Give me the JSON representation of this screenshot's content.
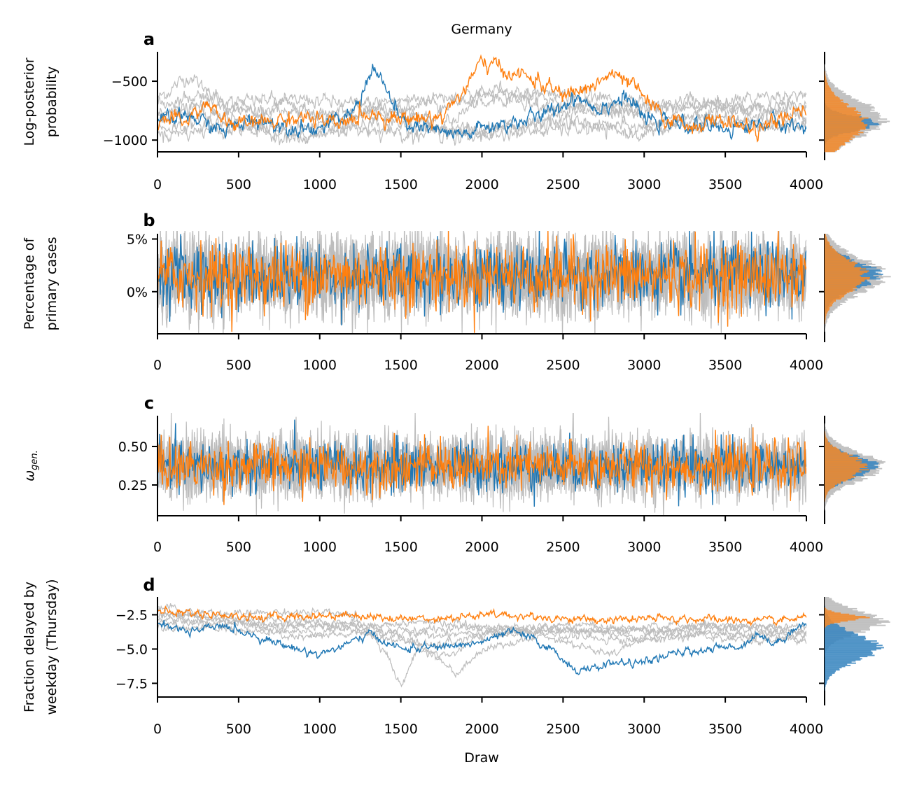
{
  "title": "Germany",
  "xlabel": "Draw",
  "colors": {
    "chain1": "#1f77b4",
    "chain2": "#ff7f0e",
    "other": "#bdbdbd",
    "hist1": "#3a86bf",
    "hist2": "#f28a2c"
  },
  "chart_data": [
    {
      "type": "line",
      "letter": "a",
      "ylabel": [
        "Log-posterior",
        "probability"
      ],
      "xlim": [
        0,
        4000
      ],
      "ylim": [
        -1100,
        -250
      ],
      "xticks": [
        0,
        500,
        1000,
        1500,
        2000,
        2500,
        3000,
        3500,
        4000
      ],
      "xtick_labels": [
        "0",
        "500",
        "1000",
        "1500",
        "2000",
        "2500",
        "3000",
        "3500",
        "4000"
      ],
      "yticks": [
        -500,
        -1000
      ],
      "ytick_labels": [
        "−500",
        "−1000"
      ],
      "n_gray_chains": 6,
      "series": [
        {
          "color": "chain1",
          "keypoints": [
            [
              0,
              -850
            ],
            [
              200,
              -800
            ],
            [
              400,
              -920
            ],
            [
              600,
              -820
            ],
            [
              800,
              -880
            ],
            [
              1000,
              -900
            ],
            [
              1200,
              -780
            ],
            [
              1330,
              -380
            ],
            [
              1420,
              -600
            ],
            [
              1500,
              -850
            ],
            [
              1700,
              -920
            ],
            [
              1850,
              -970
            ],
            [
              2000,
              -900
            ],
            [
              2200,
              -850
            ],
            [
              2400,
              -780
            ],
            [
              2600,
              -620
            ],
            [
              2700,
              -730
            ],
            [
              2900,
              -640
            ],
            [
              3000,
              -820
            ],
            [
              3200,
              -870
            ],
            [
              3500,
              -900
            ],
            [
              3800,
              -850
            ],
            [
              4000,
              -900
            ]
          ]
        },
        {
          "color": "chain2",
          "keypoints": [
            [
              0,
              -820
            ],
            [
              150,
              -850
            ],
            [
              300,
              -700
            ],
            [
              450,
              -870
            ],
            [
              650,
              -850
            ],
            [
              900,
              -800
            ],
            [
              1100,
              -880
            ],
            [
              1300,
              -770
            ],
            [
              1500,
              -820
            ],
            [
              1750,
              -800
            ],
            [
              1900,
              -560
            ],
            [
              2000,
              -330
            ],
            [
              2150,
              -420
            ],
            [
              2300,
              -470
            ],
            [
              2500,
              -620
            ],
            [
              2650,
              -560
            ],
            [
              2800,
              -440
            ],
            [
              2950,
              -560
            ],
            [
              3100,
              -800
            ],
            [
              3300,
              -880
            ],
            [
              3500,
              -830
            ],
            [
              3700,
              -920
            ],
            [
              3850,
              -820
            ],
            [
              4000,
              -760
            ]
          ]
        }
      ],
      "gray_keypoints": [
        [
          [
            0,
            -650
          ],
          [
            200,
            -450
          ],
          [
            400,
            -700
          ],
          [
            700,
            -650
          ],
          [
            1000,
            -800
          ],
          [
            1400,
            -700
          ],
          [
            1800,
            -850
          ],
          [
            2100,
            -550
          ],
          [
            2400,
            -650
          ],
          [
            2800,
            -750
          ],
          [
            3200,
            -700
          ],
          [
            3600,
            -750
          ],
          [
            4000,
            -700
          ]
        ],
        [
          [
            0,
            -700
          ],
          [
            300,
            -600
          ],
          [
            600,
            -750
          ],
          [
            900,
            -650
          ],
          [
            1200,
            -700
          ],
          [
            1600,
            -650
          ],
          [
            2000,
            -600
          ],
          [
            2400,
            -700
          ],
          [
            2800,
            -800
          ],
          [
            3300,
            -650
          ],
          [
            3700,
            -800
          ],
          [
            4000,
            -700
          ]
        ],
        [
          [
            0,
            -900
          ],
          [
            400,
            -850
          ],
          [
            800,
            -950
          ],
          [
            1200,
            -900
          ],
          [
            1600,
            -950
          ],
          [
            2000,
            -900
          ],
          [
            2500,
            -850
          ],
          [
            3000,
            -900
          ],
          [
            3500,
            -850
          ],
          [
            4000,
            -880
          ]
        ],
        [
          [
            0,
            -800
          ],
          [
            300,
            -700
          ],
          [
            700,
            -900
          ],
          [
            1100,
            -850
          ],
          [
            1500,
            -800
          ],
          [
            1900,
            -1000
          ],
          [
            2300,
            -850
          ],
          [
            2700,
            -700
          ],
          [
            3100,
            -850
          ],
          [
            3600,
            -700
          ],
          [
            4000,
            -800
          ]
        ],
        [
          [
            0,
            -950
          ],
          [
            500,
            -900
          ],
          [
            900,
            -1000
          ],
          [
            1300,
            -850
          ],
          [
            1700,
            -900
          ],
          [
            2100,
            -950
          ],
          [
            2600,
            -900
          ],
          [
            3000,
            -950
          ],
          [
            3400,
            -800
          ],
          [
            3800,
            -900
          ],
          [
            4000,
            -850
          ]
        ],
        [
          [
            0,
            -750
          ],
          [
            400,
            -800
          ],
          [
            800,
            -750
          ],
          [
            1200,
            -800
          ],
          [
            1600,
            -700
          ],
          [
            2000,
            -650
          ],
          [
            2400,
            -600
          ],
          [
            2800,
            -650
          ],
          [
            3200,
            -750
          ],
          [
            3600,
            -650
          ],
          [
            4000,
            -600
          ]
        ]
      ],
      "noise": 28,
      "gray_noise": 25,
      "hist": {
        "gray_center": -820,
        "gray_sd": 150,
        "c1_center": -860,
        "c1_sd": 60,
        "c2_center": -860,
        "c2_sd": 150
      }
    },
    {
      "type": "line",
      "letter": "b",
      "ylabel": [
        "Percentage of",
        "primary cases"
      ],
      "xlim": [
        0,
        4000
      ],
      "ylim": [
        -4,
        5.5
      ],
      "xticks": [
        0,
        500,
        1000,
        1500,
        2000,
        2500,
        3000,
        3500,
        4000
      ],
      "xtick_labels": [
        "0",
        "500",
        "1000",
        "1500",
        "2000",
        "2500",
        "3000",
        "3500",
        "4000"
      ],
      "yticks": [
        5,
        0
      ],
      "ytick_labels": [
        "5%",
        "0%"
      ],
      "n_gray_chains": 6,
      "series": [
        {
          "color": "chain1",
          "center": 1.5,
          "sd": 1.6
        },
        {
          "color": "chain2",
          "center": 1.5,
          "sd": 1.6
        }
      ],
      "hist": {
        "gray_center": 1.5,
        "gray_sd": 1.7,
        "c1_center": 1.6,
        "c1_sd": 1.3,
        "c2_center": 1.5,
        "c2_sd": 1.5
      }
    },
    {
      "type": "line",
      "letter": "c",
      "ylabel": [
        "ω_gen."
      ],
      "ylabel_symbol": "ω",
      "ylabel_sub": "gen.",
      "xlim": [
        0,
        4000
      ],
      "ylim": [
        0.05,
        0.7
      ],
      "xticks": [
        0,
        500,
        1000,
        1500,
        2000,
        2500,
        3000,
        3500,
        4000
      ],
      "xtick_labels": [
        "0",
        "500",
        "1000",
        "1500",
        "2000",
        "2500",
        "3000",
        "3500",
        "4000"
      ],
      "yticks": [
        0.5,
        0.25
      ],
      "ytick_labels": [
        "0.50",
        "0.25"
      ],
      "n_gray_chains": 6,
      "series": [
        {
          "color": "chain1",
          "center": 0.37,
          "sd": 0.085
        },
        {
          "color": "chain2",
          "center": 0.37,
          "sd": 0.08
        }
      ],
      "hist": {
        "gray_center": 0.37,
        "gray_sd": 0.09,
        "c1_center": 0.37,
        "c1_sd": 0.07,
        "c2_center": 0.37,
        "c2_sd": 0.075
      }
    },
    {
      "type": "line",
      "letter": "d",
      "ylabel": [
        "Fraction delayed by",
        "weekday (Thursday)"
      ],
      "xlim": [
        0,
        4000
      ],
      "ylim": [
        -8.5,
        -1.2
      ],
      "xticks": [
        0,
        500,
        1000,
        1500,
        2000,
        2500,
        3000,
        3500,
        4000
      ],
      "xtick_labels": [
        "0",
        "500",
        "1000",
        "1500",
        "2000",
        "2500",
        "3000",
        "3500",
        "4000"
      ],
      "yticks": [
        -2.5,
        -5.0,
        -7.5
      ],
      "ytick_labels": [
        "−2.5",
        "−5.0",
        "−7.5"
      ],
      "n_gray_chains": 6,
      "series": [
        {
          "color": "chain1",
          "keypoints": [
            [
              0,
              -3.0
            ],
            [
              200,
              -3.8
            ],
            [
              400,
              -3.3
            ],
            [
              600,
              -4.0
            ],
            [
              800,
              -4.8
            ],
            [
              1000,
              -5.4
            ],
            [
              1200,
              -4.5
            ],
            [
              1300,
              -3.9
            ],
            [
              1500,
              -5.0
            ],
            [
              1800,
              -4.8
            ],
            [
              2000,
              -4.5
            ],
            [
              2200,
              -3.7
            ],
            [
              2400,
              -4.8
            ],
            [
              2600,
              -6.7
            ],
            [
              2800,
              -6.0
            ],
            [
              3000,
              -6.0
            ],
            [
              3200,
              -5.3
            ],
            [
              3400,
              -5.0
            ],
            [
              3600,
              -4.8
            ],
            [
              3700,
              -3.8
            ],
            [
              3800,
              -4.7
            ],
            [
              3950,
              -3.3
            ],
            [
              4000,
              -3.2
            ]
          ]
        },
        {
          "color": "chain2",
          "keypoints": [
            [
              0,
              -2.3
            ],
            [
              300,
              -2.4
            ],
            [
              600,
              -2.7
            ],
            [
              900,
              -2.6
            ],
            [
              1200,
              -2.5
            ],
            [
              1500,
              -2.8
            ],
            [
              1800,
              -2.7
            ],
            [
              2100,
              -2.5
            ],
            [
              2400,
              -2.7
            ],
            [
              2700,
              -2.9
            ],
            [
              3000,
              -2.8
            ],
            [
              3300,
              -2.8
            ],
            [
              3600,
              -2.9
            ],
            [
              3800,
              -3.0
            ],
            [
              4000,
              -2.7
            ]
          ]
        }
      ],
      "gray_keypoints": [
        [
          [
            0,
            -2.0
          ],
          [
            400,
            -2.5
          ],
          [
            800,
            -2.3
          ],
          [
            1200,
            -2.5
          ],
          [
            1400,
            -5.0
          ],
          [
            1500,
            -7.8
          ],
          [
            1600,
            -5.0
          ],
          [
            1800,
            -5.5
          ],
          [
            2000,
            -4.0
          ],
          [
            2400,
            -3.5
          ],
          [
            2800,
            -3.8
          ],
          [
            3200,
            -3.2
          ],
          [
            3600,
            -3.6
          ],
          [
            4000,
            -4.0
          ]
        ],
        [
          [
            0,
            -2.3
          ],
          [
            400,
            -2.8
          ],
          [
            800,
            -3.3
          ],
          [
            1200,
            -3.0
          ],
          [
            1600,
            -4.5
          ],
          [
            1850,
            -6.8
          ],
          [
            2000,
            -5.0
          ],
          [
            2400,
            -4.0
          ],
          [
            2800,
            -5.5
          ],
          [
            3000,
            -4.0
          ],
          [
            3400,
            -3.2
          ],
          [
            3800,
            -3.5
          ],
          [
            4000,
            -4.6
          ]
        ],
        [
          [
            0,
            -3.0
          ],
          [
            400,
            -3.2
          ],
          [
            800,
            -3.5
          ],
          [
            1200,
            -3.3
          ],
          [
            1600,
            -3.6
          ],
          [
            2000,
            -3.4
          ],
          [
            2400,
            -3.8
          ],
          [
            2800,
            -3.5
          ],
          [
            3200,
            -3.7
          ],
          [
            3600,
            -4.0
          ],
          [
            4000,
            -3.6
          ]
        ],
        [
          [
            0,
            -2.5
          ],
          [
            500,
            -2.8
          ],
          [
            1000,
            -3.0
          ],
          [
            1400,
            -4.2
          ],
          [
            1700,
            -4.8
          ],
          [
            2000,
            -4.0
          ],
          [
            2500,
            -3.5
          ],
          [
            3000,
            -4.3
          ],
          [
            3400,
            -3.8
          ],
          [
            3800,
            -4.2
          ],
          [
            4000,
            -3.8
          ]
        ],
        [
          [
            0,
            -2.8
          ],
          [
            400,
            -3.0
          ],
          [
            900,
            -3.8
          ],
          [
            1300,
            -3.3
          ],
          [
            1700,
            -3.0
          ],
          [
            2100,
            -3.6
          ],
          [
            2600,
            -3.2
          ],
          [
            3000,
            -3.7
          ],
          [
            3500,
            -3.4
          ],
          [
            4000,
            -3.3
          ]
        ],
        [
          [
            0,
            -3.3
          ],
          [
            500,
            -3.6
          ],
          [
            900,
            -4.2
          ],
          [
            1300,
            -3.8
          ],
          [
            1700,
            -4.0
          ],
          [
            2100,
            -3.5
          ],
          [
            2500,
            -4.0
          ],
          [
            2900,
            -4.4
          ],
          [
            3300,
            -4.0
          ],
          [
            3700,
            -4.5
          ],
          [
            4000,
            -4.2
          ]
        ]
      ],
      "noise": 0.12,
      "gray_noise": 0.12,
      "hist": {
        "gray_center": -3.0,
        "gray_sd": 0.8,
        "c1_center": -4.9,
        "c1_sd": 1.0,
        "c2_center": -2.7,
        "c2_sd": 0.25
      }
    }
  ]
}
